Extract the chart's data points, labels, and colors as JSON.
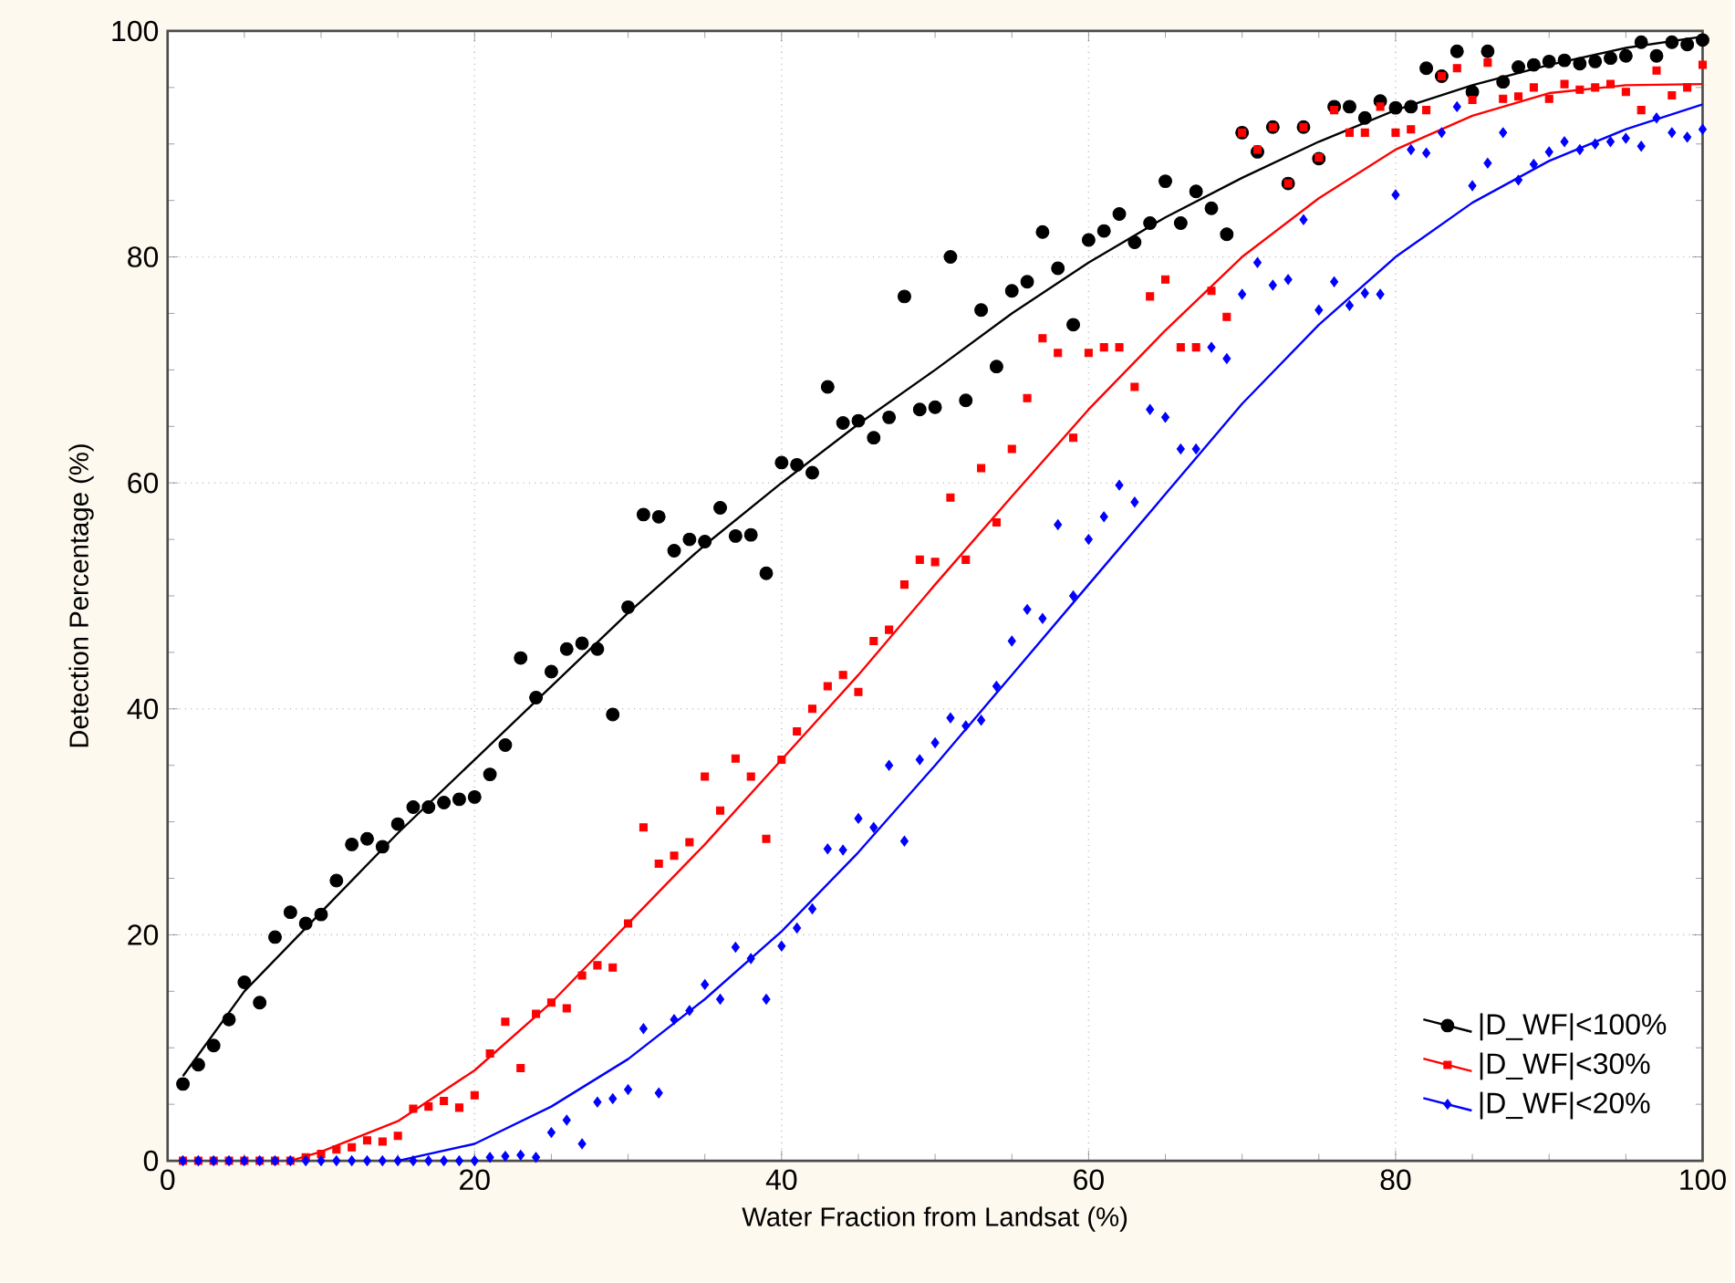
{
  "chart_data": {
    "type": "scatter",
    "xlabel": "Water Fraction from Landsat (%)",
    "ylabel": "Detection Percentage (%)",
    "xlim": [
      0,
      100
    ],
    "ylim": [
      0,
      100
    ],
    "xticks": [
      0,
      20,
      40,
      60,
      80,
      100
    ],
    "yticks": [
      0,
      20,
      40,
      60,
      80,
      100
    ],
    "grid": true,
    "legend": "bottom right",
    "x": [
      1,
      2,
      3,
      4,
      5,
      6,
      7,
      8,
      9,
      10,
      11,
      12,
      13,
      14,
      15,
      16,
      17,
      18,
      19,
      20,
      21,
      22,
      23,
      24,
      25,
      26,
      27,
      28,
      29,
      30,
      31,
      32,
      33,
      34,
      35,
      36,
      37,
      38,
      39,
      40,
      41,
      42,
      43,
      44,
      45,
      46,
      47,
      48,
      49,
      50,
      51,
      52,
      53,
      54,
      55,
      56,
      57,
      58,
      59,
      60,
      61,
      62,
      63,
      64,
      65,
      66,
      67,
      68,
      69,
      70,
      71,
      72,
      73,
      74,
      75,
      76,
      77,
      78,
      79,
      80,
      81,
      82,
      83,
      84,
      85,
      86,
      87,
      88,
      89,
      90,
      91,
      92,
      93,
      94,
      95,
      96,
      97,
      98,
      99,
      100
    ],
    "series": [
      {
        "name": "|D_WF|<100%",
        "color": "#000000",
        "marker": "circle",
        "values": [
          6.8,
          8.5,
          10.2,
          12.5,
          15.8,
          14,
          19.8,
          22,
          21,
          21.8,
          24.8,
          28,
          28.5,
          27.8,
          29.8,
          31.3,
          31.3,
          31.7,
          32,
          32.2,
          34.2,
          36.8,
          44.5,
          41,
          43.3,
          45.3,
          45.8,
          45.3,
          39.5,
          49,
          57.2,
          57,
          54,
          55,
          54.8,
          57.8,
          55.3,
          55.4,
          52,
          61.8,
          61.6,
          60.9,
          68.5,
          65.3,
          65.5,
          64,
          65.8,
          76.5,
          66.5,
          66.7,
          80,
          67.3,
          75.3,
          70.3,
          77,
          77.8,
          82.2,
          79,
          74,
          81.5,
          82.3,
          83.8,
          81.3,
          83,
          86.7,
          83,
          85.8,
          84.3,
          82,
          91,
          89.3,
          91.5,
          86.5,
          91.5,
          88.7,
          93.3,
          93.3,
          92.3,
          93.8,
          93.2,
          93.3,
          96.7,
          96,
          98.2,
          94.6,
          98.2,
          95.5,
          96.8,
          97,
          97.3,
          97.4,
          97.1,
          97.3,
          97.6,
          97.8,
          99,
          97.8,
          99,
          98.8,
          99.2
        ]
      },
      {
        "name": "|D_WF|<30%",
        "color": "#ff0000",
        "marker": "square",
        "values": [
          0,
          0,
          0,
          0,
          0,
          0,
          0,
          0,
          0.3,
          0.6,
          1,
          1.2,
          1.8,
          1.7,
          2.2,
          4.6,
          4.8,
          5.3,
          4.7,
          5.8,
          9.5,
          12.3,
          8.2,
          13,
          14,
          13.5,
          16.4,
          17.3,
          17.1,
          21,
          29.5,
          26.3,
          27,
          28.2,
          34,
          31,
          35.6,
          34,
          28.5,
          35.5,
          38,
          40,
          42,
          43,
          41.5,
          46,
          47,
          51,
          53.2,
          53,
          58.7,
          53.2,
          61.3,
          56.5,
          63,
          67.5,
          72.8,
          71.5,
          64,
          71.5,
          72,
          72,
          68.5,
          76.5,
          78,
          72,
          72,
          77,
          74.7,
          91,
          89.5,
          91.5,
          86.5,
          91.5,
          88.8,
          93,
          91,
          91,
          93.3,
          91,
          91.3,
          93,
          96,
          96.7,
          93.9,
          97.2,
          94,
          94.2,
          95,
          94,
          95.3,
          94.8,
          95,
          95.3,
          94.6,
          93,
          96.5,
          94.3,
          95,
          97
        ]
      },
      {
        "name": "|D_WF|<20%",
        "color": "#0000ff",
        "marker": "diamond",
        "values": [
          0,
          0,
          0,
          0,
          0,
          0,
          0,
          0,
          0,
          0,
          0,
          0,
          0,
          0,
          0,
          0,
          0,
          0,
          0,
          0,
          0.3,
          0.4,
          0.5,
          0.3,
          2.5,
          3.6,
          1.5,
          5.2,
          5.5,
          6.3,
          11.7,
          6,
          12.5,
          13.3,
          15.6,
          14.3,
          18.9,
          17.9,
          14.3,
          19,
          20.6,
          22.3,
          27.6,
          27.5,
          30.3,
          29.5,
          35,
          28.3,
          35.5,
          37,
          39.2,
          38.5,
          39,
          42,
          46,
          48.8,
          48,
          56.3,
          50,
          55,
          57,
          59.8,
          58.3,
          66.5,
          65.8,
          63,
          63,
          72,
          71,
          76.7,
          79.5,
          77.5,
          78,
          83.3,
          75.3,
          77.8,
          75.7,
          76.8,
          76.7,
          85.5,
          89.5,
          89.2,
          91,
          93.3,
          86.3,
          88.3,
          91,
          86.8,
          88.2,
          89.3,
          90.2,
          89.5,
          90,
          90.2,
          90.5,
          89.8,
          92.3,
          91,
          90.6,
          91.3
        ]
      },
      {
        "type": "line",
        "color": "#000000",
        "marker": "none",
        "line_style": "solid",
        "x": [
          1,
          5,
          10,
          15,
          20,
          25,
          30,
          35,
          40,
          45,
          50,
          55,
          60,
          65,
          70,
          75,
          80,
          85,
          90,
          95,
          100
        ],
        "values": [
          7.5,
          15,
          22,
          29,
          35.5,
          42,
          48.5,
          54.5,
          60,
          65.2,
          70,
          75,
          79.5,
          83.5,
          87,
          90.2,
          93,
          95.2,
          97,
          98.5,
          99.5
        ]
      },
      {
        "type": "line",
        "color": "#ff0000",
        "marker": "none",
        "line_style": "solid",
        "x": [
          8,
          10,
          15,
          20,
          25,
          30,
          35,
          40,
          45,
          50,
          55,
          60,
          65,
          70,
          75,
          80,
          85,
          90,
          95,
          100
        ],
        "values": [
          0,
          0.8,
          3.5,
          8,
          14,
          21,
          28,
          35.5,
          43,
          51,
          58.8,
          66.5,
          73.5,
          80,
          85.2,
          89.5,
          92.5,
          94.5,
          95.2,
          95.3
        ]
      },
      {
        "type": "line",
        "color": "#0000ff",
        "marker": "none",
        "line_style": "solid",
        "x": [
          15,
          20,
          25,
          30,
          35,
          40,
          45,
          50,
          55,
          60,
          65,
          70,
          75,
          80,
          85,
          90,
          95,
          100
        ],
        "values": [
          0,
          1.5,
          4.8,
          9,
          14.3,
          20.3,
          27.3,
          35,
          43,
          51,
          59,
          67,
          74,
          80,
          84.8,
          88.5,
          91.3,
          93.5
        ]
      }
    ]
  }
}
